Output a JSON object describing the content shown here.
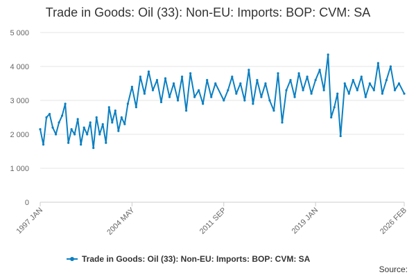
{
  "title": "Trade in Goods: Oil (33): Non-EU: Imports: BOP: CVM: SA",
  "source_label": "Source:",
  "chart_data": {
    "type": "line",
    "title": "Trade in Goods: Oil (33): Non-EU: Imports: BOP: CVM: SA",
    "xlabel": "",
    "ylabel": "",
    "ylim": [
      0,
      5000
    ],
    "y_ticks": [
      0,
      1000,
      2000,
      3000,
      4000,
      5000
    ],
    "y_tick_labels": [
      "0",
      "1 000",
      "2 000",
      "3 000",
      "4 000",
      "5 000"
    ],
    "x_range": [
      "1997 JAN",
      "2026 FEB"
    ],
    "x_tick_labels": [
      "1997 JAN",
      "2004 MAY",
      "2011 SEP",
      "2019 JAN",
      "2026 FEB"
    ],
    "grid": "horizontal",
    "legend_position": "bottom",
    "line_color": "#0a7fc1",
    "series": [
      {
        "name": "Trade in Goods: Oil (33): Non-EU: Imports: BOP: CVM: SA",
        "points": [
          [
            "1997 JAN",
            2150
          ],
          [
            "1997 APR",
            1700
          ],
          [
            "1997 JUL",
            2500
          ],
          [
            "1997 OCT",
            2600
          ],
          [
            "1998 JAN",
            2200
          ],
          [
            "1998 APR",
            2000
          ],
          [
            "1998 JUL",
            2350
          ],
          [
            "1998 OCT",
            2550
          ],
          [
            "1999 JAN",
            2900
          ],
          [
            "1999 APR",
            1750
          ],
          [
            "1999 JUL",
            2150
          ],
          [
            "1999 OCT",
            2000
          ],
          [
            "2000 JAN",
            2450
          ],
          [
            "2000 APR",
            1700
          ],
          [
            "2000 JUL",
            2200
          ],
          [
            "2000 OCT",
            2000
          ],
          [
            "2001 JAN",
            2350
          ],
          [
            "2001 APR",
            1600
          ],
          [
            "2001 JUL",
            2500
          ],
          [
            "2001 OCT",
            2000
          ],
          [
            "2002 JAN",
            2300
          ],
          [
            "2002 APR",
            1750
          ],
          [
            "2002 JUL",
            2800
          ],
          [
            "2002 OCT",
            2350
          ],
          [
            "2003 JAN",
            2700
          ],
          [
            "2003 APR",
            2100
          ],
          [
            "2003 JUL",
            2500
          ],
          [
            "2003 OCT",
            2300
          ],
          [
            "2004 JAN",
            2900
          ],
          [
            "2004 MAY",
            3400
          ],
          [
            "2004 SEP",
            2800
          ],
          [
            "2005 JAN",
            3700
          ],
          [
            "2005 MAY",
            3200
          ],
          [
            "2005 SEP",
            3850
          ],
          [
            "2006 JAN",
            3300
          ],
          [
            "2006 MAY",
            3600
          ],
          [
            "2006 SEP",
            2950
          ],
          [
            "2007 JAN",
            3650
          ],
          [
            "2007 MAY",
            3100
          ],
          [
            "2007 SEP",
            3500
          ],
          [
            "2008 JAN",
            3000
          ],
          [
            "2008 MAY",
            3700
          ],
          [
            "2008 SEP",
            2700
          ],
          [
            "2009 JAN",
            3800
          ],
          [
            "2009 MAY",
            3100
          ],
          [
            "2009 SEP",
            3300
          ],
          [
            "2010 JAN",
            2900
          ],
          [
            "2010 MAY",
            3600
          ],
          [
            "2010 SEP",
            3100
          ],
          [
            "2011 JAN",
            3500
          ],
          [
            "2011 SEP",
            3000
          ],
          [
            "2012 JAN",
            3300
          ],
          [
            "2012 MAY",
            3700
          ],
          [
            "2012 SEP",
            3200
          ],
          [
            "2013 JAN",
            3500
          ],
          [
            "2013 MAY",
            3000
          ],
          [
            "2013 SEP",
            3900
          ],
          [
            "2014 JAN",
            2900
          ],
          [
            "2014 MAY",
            3600
          ],
          [
            "2014 SEP",
            3100
          ],
          [
            "2015 JAN",
            3500
          ],
          [
            "2015 MAY",
            3000
          ],
          [
            "2015 SEP",
            2700
          ],
          [
            "2016 JAN",
            3800
          ],
          [
            "2016 MAY",
            2350
          ],
          [
            "2016 SEP",
            3300
          ],
          [
            "2017 JAN",
            3600
          ],
          [
            "2017 MAY",
            3100
          ],
          [
            "2017 SEP",
            3800
          ],
          [
            "2018 JAN",
            3300
          ],
          [
            "2018 MAY",
            3700
          ],
          [
            "2018 SEP",
            3200
          ],
          [
            "2019 JAN",
            3600
          ],
          [
            "2019 MAY",
            3900
          ],
          [
            "2019 SEP",
            3300
          ],
          [
            "2020 JAN",
            4350
          ],
          [
            "2020 APR",
            2500
          ],
          [
            "2020 JUL",
            2800
          ],
          [
            "2020 OCT",
            3200
          ],
          [
            "2021 JAN",
            1950
          ],
          [
            "2021 MAY",
            3500
          ],
          [
            "2021 SEP",
            3200
          ],
          [
            "2022 JAN",
            3600
          ],
          [
            "2022 MAY",
            3300
          ],
          [
            "2022 SEP",
            3700
          ],
          [
            "2023 JAN",
            3100
          ],
          [
            "2023 MAY",
            3500
          ],
          [
            "2023 SEP",
            3300
          ],
          [
            "2024 JAN",
            4100
          ],
          [
            "2024 MAY",
            3200
          ],
          [
            "2024 SEP",
            3600
          ],
          [
            "2025 JAN",
            4000
          ],
          [
            "2025 MAY",
            3300
          ],
          [
            "2025 SEP",
            3500
          ],
          [
            "2026 FEB",
            3200
          ]
        ]
      }
    ]
  }
}
